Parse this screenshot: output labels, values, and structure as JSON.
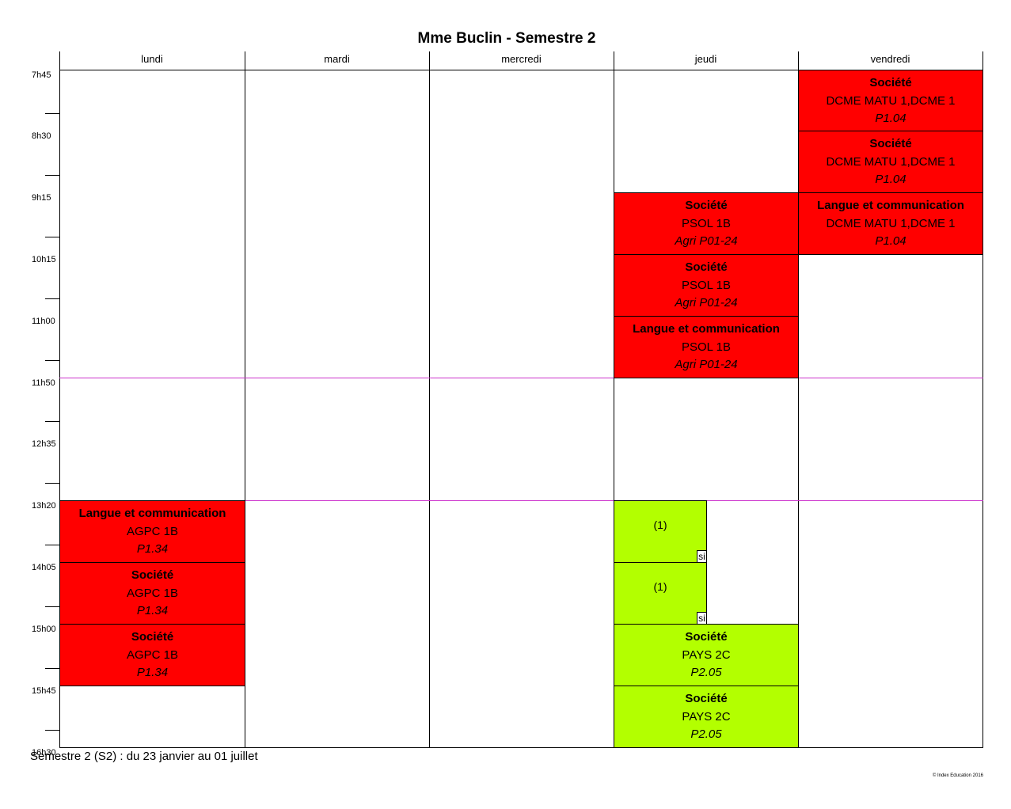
{
  "title": "Mme Buclin - Semestre 2",
  "days": [
    "lundi",
    "mardi",
    "mercredi",
    "jeudi",
    "vendredi"
  ],
  "times": [
    "7h45",
    "8h30",
    "9h15",
    "10h15",
    "11h00",
    "11h50",
    "12h35",
    "13h20",
    "14h05",
    "15h00",
    "15h45",
    "16h30"
  ],
  "lessons": [
    {
      "day": "vendredi",
      "start": "7h45",
      "end": "8h30",
      "subject": "Société",
      "group": "DCME MATU 1,DCME 1",
      "room": "P1.04",
      "color": "#ff0000"
    },
    {
      "day": "vendredi",
      "start": "8h30",
      "end": "9h15",
      "subject": "Société",
      "group": "DCME MATU 1,DCME 1",
      "room": "P1.04",
      "color": "#ff0000"
    },
    {
      "day": "vendredi",
      "start": "9h15",
      "end": "10h15",
      "subject": "Langue et communication",
      "group": "DCME MATU 1,DCME 1",
      "room": "P1.04",
      "color": "#ff0000"
    },
    {
      "day": "jeudi",
      "start": "9h15",
      "end": "10h15",
      "subject": "Société",
      "group": "PSOL 1B",
      "room": "Agri P01-24",
      "color": "#ff0000"
    },
    {
      "day": "jeudi",
      "start": "10h15",
      "end": "11h00",
      "subject": "Société",
      "group": "PSOL 1B",
      "room": "Agri P01-24",
      "color": "#ff0000"
    },
    {
      "day": "jeudi",
      "start": "11h00",
      "end": "11h50",
      "subject": "Langue et communication",
      "group": "PSOL 1B",
      "room": "Agri P01-24",
      "color": "#ff0000"
    },
    {
      "day": "lundi",
      "start": "13h20",
      "end": "14h05",
      "subject": "Langue et communication",
      "group": "AGPC 1B",
      "room": "P1.34",
      "color": "#ff0000"
    },
    {
      "day": "lundi",
      "start": "14h05",
      "end": "15h00",
      "subject": "Société",
      "group": "AGPC 1B",
      "room": "P1.34",
      "color": "#ff0000"
    },
    {
      "day": "lundi",
      "start": "15h00",
      "end": "15h45",
      "subject": "Société",
      "group": "AGPC 1B",
      "room": "P1.34",
      "color": "#ff0000"
    },
    {
      "day": "jeudi",
      "start": "15h00",
      "end": "15h45",
      "subject": "Société",
      "group": "PAYS 2C",
      "room": "P2.05",
      "color": "#b3ff00"
    },
    {
      "day": "jeudi",
      "start": "15h45",
      "end": "16h30",
      "subject": "Société",
      "group": "PAYS 2C",
      "room": "P2.05",
      "color": "#b3ff00"
    }
  ],
  "half_slots": [
    {
      "day": "jeudi",
      "start": "13h20",
      "end": "14h05",
      "note": "(1)",
      "tag": "si",
      "color": "#b3ff00"
    },
    {
      "day": "jeudi",
      "start": "14h05",
      "end": "15h00",
      "note": "(1)",
      "tag": "si",
      "color": "#b3ff00"
    }
  ],
  "footer": "Semestre 2 (S2) : du 23 janvier au 01 juillet",
  "copyright": "© Index Education 2016"
}
